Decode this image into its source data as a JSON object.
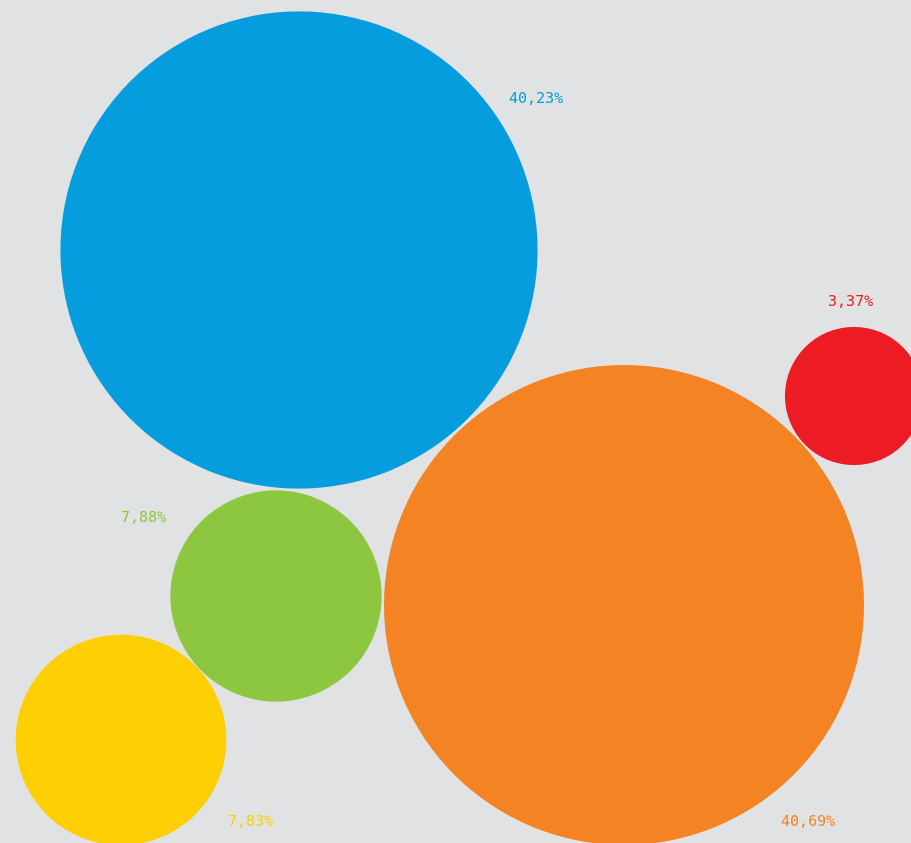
{
  "chart_data": {
    "type": "bubble",
    "title": "",
    "series": [
      {
        "value": 40.23,
        "label": "40,23%",
        "color": "#069dde"
      },
      {
        "value": 40.69,
        "label": "40,69%",
        "color": "#f38323"
      },
      {
        "value": 7.88,
        "label": "7,88%",
        "color": "#8dc63f"
      },
      {
        "value": 7.83,
        "label": "7,83%",
        "color": "#fecf02"
      },
      {
        "value": 3.37,
        "label": "3,37%",
        "color": "#ed1c24"
      }
    ]
  }
}
